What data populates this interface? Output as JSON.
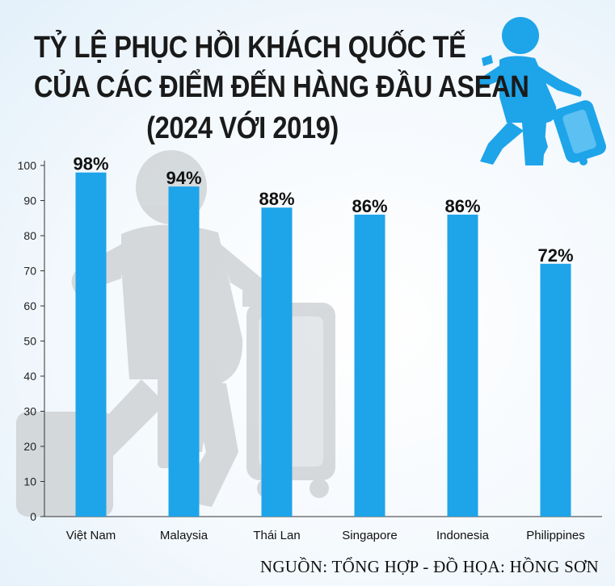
{
  "title": {
    "line1": "TỶ LỆ PHỤC HỒI KHÁCH QUỐC TẾ",
    "line2": "CỦA CÁC ĐIỂM ĐẾN HÀNG ĐẦU ASEAN",
    "line3": "(2024 VỚI 2019)"
  },
  "source": "NGUỒN: TỔNG HỢP - ĐỒ HỌA: HỒNG SƠN",
  "chart_data": {
    "type": "bar",
    "categories": [
      "Việt Nam",
      "Malaysia",
      "Thái Lan",
      "Singapore",
      "Indonesia",
      "Philippines"
    ],
    "values": [
      98,
      94,
      88,
      86,
      86,
      72
    ],
    "data_labels": [
      "98%",
      "94%",
      "88%",
      "86%",
      "86%",
      "72%"
    ],
    "ylim": [
      0,
      100
    ],
    "yticks": [
      0,
      10,
      20,
      30,
      40,
      50,
      60,
      70,
      80,
      90,
      100
    ],
    "grid": false,
    "legend": "none",
    "xlabel": "",
    "ylabel": ""
  },
  "colors": {
    "bar": "#1ea4e9",
    "icon": "#1ea4e9",
    "watermark": "#cfd3d6",
    "axis": "#333333"
  },
  "icons": {
    "header_icon": "traveler-with-suitcase-icon",
    "background_watermark": "traveler-with-suitcase-icon"
  }
}
